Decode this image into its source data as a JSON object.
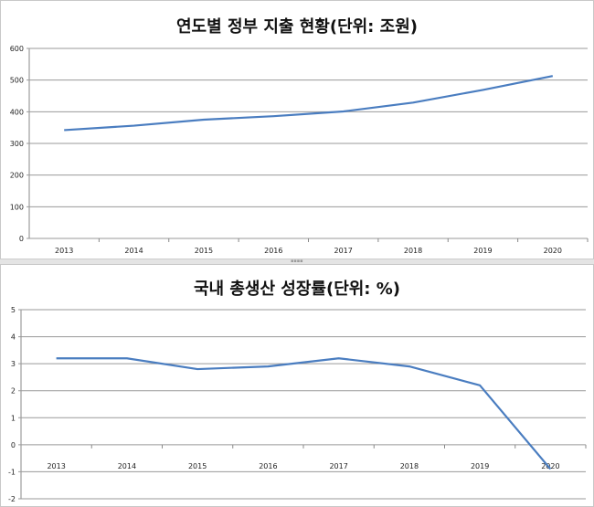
{
  "chart_data": [
    {
      "type": "line",
      "title": "연도별 정부 지출 현황(단위: 조원)",
      "categories": [
        "2013",
        "2014",
        "2015",
        "2016",
        "2017",
        "2018",
        "2019",
        "2020"
      ],
      "series": [
        {
          "name": "정부 지출",
          "values": [
            342,
            356,
            375,
            386,
            401,
            429,
            469,
            513
          ]
        }
      ],
      "yticks": [
        "0",
        "100",
        "200",
        "300",
        "400",
        "500",
        "600"
      ],
      "ylim": [
        0,
        600
      ],
      "grid": true,
      "xlabel": "",
      "ylabel": "",
      "color": "#4a7dc0"
    },
    {
      "type": "line",
      "title": "국내 총생산 성장률(단위: %)",
      "categories": [
        "2013",
        "2014",
        "2015",
        "2016",
        "2017",
        "2018",
        "2019",
        "2020"
      ],
      "series": [
        {
          "name": "성장률",
          "values": [
            3.2,
            3.2,
            2.8,
            2.9,
            3.2,
            2.9,
            2.2,
            -0.9
          ]
        }
      ],
      "yticks": [
        "-2",
        "-1",
        "0",
        "1",
        "2",
        "3",
        "4",
        "5"
      ],
      "ylim": [
        -2,
        5
      ],
      "grid": true,
      "xlabel": "",
      "ylabel": "",
      "color": "#4a7dc0"
    }
  ]
}
